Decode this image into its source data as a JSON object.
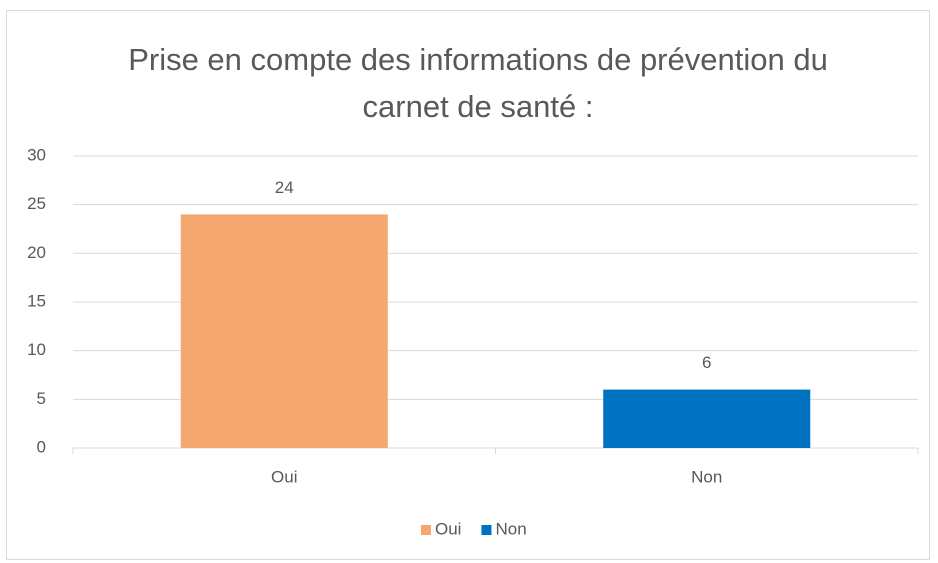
{
  "chart_data": {
    "type": "bar",
    "title": "Prise en compte des informations de prévention du carnet de santé :",
    "categories": [
      "Oui",
      "Non"
    ],
    "values": [
      24,
      6
    ],
    "colors": [
      "#f4a76f",
      "#0070c0"
    ],
    "ylim": [
      0,
      30
    ],
    "yticks": [
      0,
      5,
      10,
      15,
      20,
      25,
      30
    ],
    "grid": true,
    "legend": "bottom"
  }
}
